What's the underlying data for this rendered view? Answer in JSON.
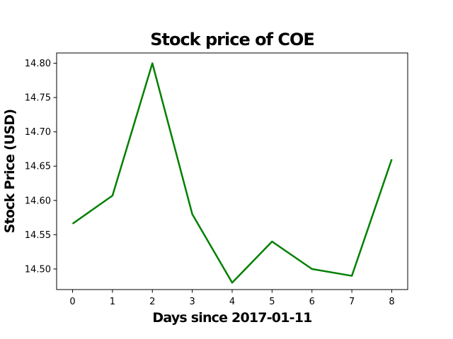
{
  "chart_data": {
    "type": "line",
    "title": "Stock price of COE",
    "xlabel": "Days since 2017-01-11",
    "ylabel": "Stock Price (USD)",
    "x": [
      0,
      1,
      2,
      3,
      4,
      5,
      6,
      7,
      8
    ],
    "series": [
      {
        "values": [
          14.566,
          14.607,
          14.8,
          14.58,
          14.48,
          14.54,
          14.5,
          14.49,
          14.66
        ],
        "color": "#008000"
      }
    ],
    "xlim": [
      -0.4,
      8.4
    ],
    "ylim": [
      14.47,
      14.815
    ],
    "xticks": [
      0,
      1,
      2,
      3,
      4,
      5,
      6,
      7,
      8
    ],
    "yticks": [
      14.5,
      14.55,
      14.6,
      14.65,
      14.7,
      14.75,
      14.8
    ],
    "ytick_labels": [
      "14.50",
      "14.55",
      "14.60",
      "14.65",
      "14.70",
      "14.75",
      "14.80"
    ],
    "grid": false,
    "legend": false
  }
}
